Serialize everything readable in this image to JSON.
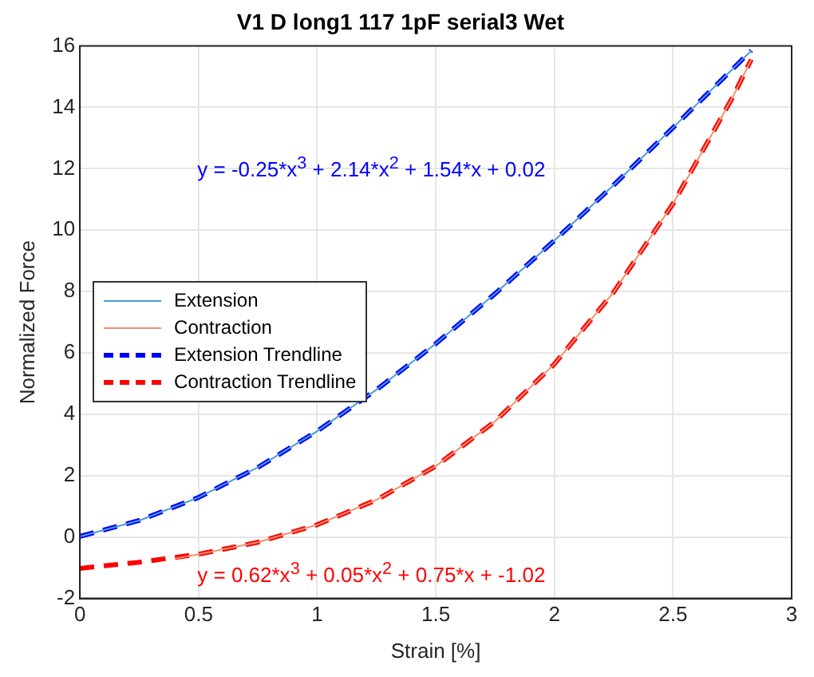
{
  "chart_data": {
    "type": "line",
    "title": "V1 D long1 117 1pF serial3 Wet",
    "xlabel": "Strain [%]",
    "ylabel": "Normalized Force",
    "series": [
      {
        "name": "Extension",
        "color": "#4a9ad6",
        "line_style": "solid",
        "x": [
          0,
          0.25,
          0.5,
          0.75,
          1,
          1.25,
          1.5,
          1.75,
          2,
          2.25,
          2.5,
          2.75,
          2.83
        ],
        "values": [
          0.02,
          0.54,
          1.29,
          2.27,
          3.45,
          4.8,
          6.3,
          7.93,
          9.66,
          11.47,
          13.34,
          15.24,
          15.85
        ]
      },
      {
        "name": "Contraction",
        "color": "#f09070",
        "line_style": "solid",
        "x": [
          0.4,
          0.5,
          0.75,
          1,
          1.25,
          1.5,
          1.75,
          2,
          2.25,
          2.5,
          2.75,
          2.83
        ],
        "values": [
          -0.7,
          -0.56,
          -0.17,
          0.4,
          1.21,
          2.31,
          3.77,
          5.64,
          7.98,
          10.86,
          14.31,
          15.56
        ]
      },
      {
        "name": "Extension Trendline",
        "color": "#0000ff",
        "line_style": "dashed",
        "x": [
          0,
          0.25,
          0.5,
          0.75,
          1,
          1.25,
          1.5,
          1.75,
          2,
          2.25,
          2.5,
          2.75,
          2.83
        ],
        "values": [
          0.02,
          0.54,
          1.29,
          2.27,
          3.45,
          4.8,
          6.3,
          7.93,
          9.66,
          11.47,
          13.34,
          15.24,
          15.85
        ]
      },
      {
        "name": "Contraction Trendline",
        "color": "#ff0000",
        "line_style": "dashed",
        "x": [
          0,
          0.25,
          0.5,
          0.75,
          1,
          1.25,
          1.5,
          1.75,
          2,
          2.25,
          2.5,
          2.75,
          2.83
        ],
        "values": [
          -1.02,
          -0.82,
          -0.56,
          -0.17,
          0.4,
          1.21,
          2.31,
          3.77,
          5.64,
          7.98,
          10.86,
          14.31,
          15.56
        ]
      }
    ],
    "annotations": [
      "y = -0.25*x$^{3}$ + 2.14*x$^{2}$ + 1.54*x + 0.02",
      "y =  0.62*x$^{3}$ + 0.05*x$^{2}$ + 0.75*x + -1.02"
    ],
    "xlim": [
      0,
      3
    ],
    "xticks": [
      0,
      0.5,
      1,
      1.5,
      2,
      2.5,
      3
    ],
    "ylim": [
      -2,
      16
    ],
    "yticks": [
      -2,
      0,
      2,
      4,
      6,
      8,
      10,
      12,
      14,
      16
    ],
    "grid": true,
    "legend": "left",
    "marker": "none"
  }
}
